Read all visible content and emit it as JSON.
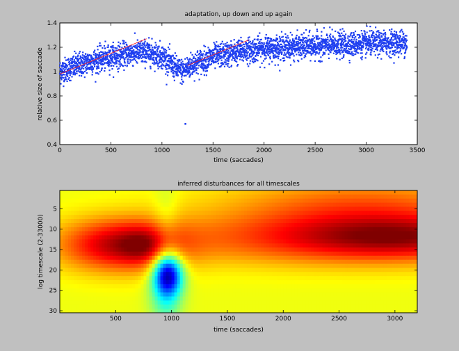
{
  "figure": {
    "background": "#c0c0c0"
  },
  "chart_data": [
    {
      "type": "scatter",
      "title": "adaptation, up down and up again",
      "xlabel": "time (saccades)",
      "ylabel": "relative size of saccade",
      "xlim": [
        0,
        3500
      ],
      "ylim": [
        0.4,
        1.4
      ],
      "xticks": [
        0,
        500,
        1000,
        1500,
        2000,
        2500,
        3000,
        3500
      ],
      "yticks": [
        0.4,
        0.6,
        0.8,
        1,
        1.2,
        1.4
      ],
      "grid": false,
      "series": [
        {
          "marker_color": "#1f3ff0",
          "trend_x": [
            0,
            250,
            500,
            700,
            850,
            1000,
            1100,
            1200,
            1300,
            1500,
            1800,
            2000,
            2500,
            3000,
            3400
          ],
          "trend_y": [
            1.0,
            1.07,
            1.12,
            1.15,
            1.16,
            1.13,
            1.05,
            1.0,
            1.06,
            1.12,
            1.17,
            1.19,
            1.21,
            1.23,
            1.24
          ],
          "spread": 0.05,
          "n_points": 3400,
          "outliers": [
            {
              "x": 1230,
              "y": 0.57
            }
          ]
        }
      ],
      "reference_lines": [
        {
          "color": "#ff2020",
          "x": [
            0,
            850
          ],
          "y": [
            0.98,
            1.27
          ]
        },
        {
          "color": "#ff2020",
          "x": [
            1250,
            1850
          ],
          "y": [
            1.05,
            1.26
          ]
        }
      ]
    },
    {
      "type": "heatmap",
      "title": "inferred disturbances for all timescales",
      "xlabel": "time (saccades)",
      "ylabel": "log timescale (2-33000)",
      "xlim": [
        0,
        3200
      ],
      "ylim": [
        0.5,
        30.5
      ],
      "y_reversed": true,
      "xticks": [
        500,
        1000,
        1500,
        2000,
        2500,
        3000
      ],
      "yticks": [
        5,
        10,
        15,
        20,
        25,
        30
      ],
      "colormap": "jet",
      "clim": [
        -1,
        1
      ],
      "background_value": 0.22,
      "features": [
        {
          "x": 550,
          "y": 14,
          "sx": 380,
          "sy": 4.5,
          "v": 0.62
        },
        {
          "x": 750,
          "y": 14,
          "sx": 140,
          "sy": 3,
          "v": 0.18
        },
        {
          "x": 2600,
          "y": 12.5,
          "sx": 1100,
          "sy": 4.5,
          "v": 0.48
        },
        {
          "x": 3100,
          "y": 12,
          "sx": 600,
          "sy": 3.5,
          "v": 0.28
        },
        {
          "x": 2700,
          "y": 4,
          "sx": 900,
          "sy": 5,
          "v": 0.32
        },
        {
          "x": 970,
          "y": 21,
          "sx": 90,
          "sy": 3.5,
          "v": -0.95
        },
        {
          "x": 950,
          "y": 26,
          "sx": 100,
          "sy": 6,
          "v": -0.35
        },
        {
          "x": 950,
          "y": 8,
          "sx": 80,
          "sy": 8,
          "v": -0.12
        }
      ]
    }
  ]
}
